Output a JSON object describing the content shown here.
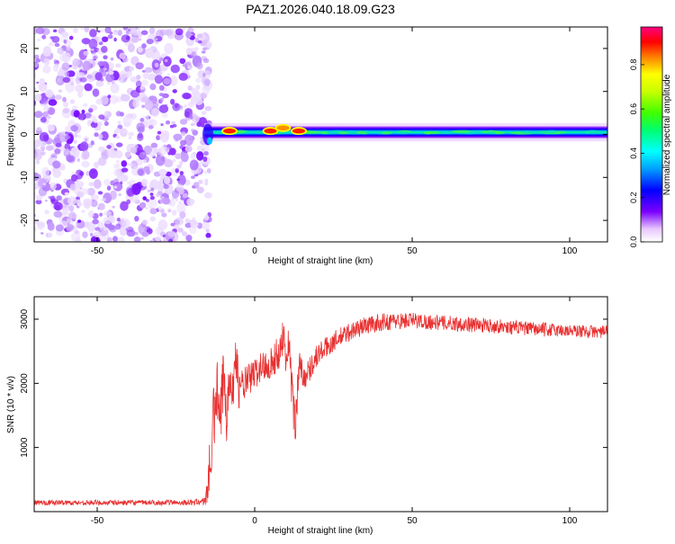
{
  "page_title": "PAZ1.2026.040.18.09.G23",
  "chart_data": [
    {
      "type": "heatmap",
      "title": "PAZ1.2026.040.18.09.G23",
      "xlabel": "Height of straight line (km)",
      "ylabel": "Frequency (Hz)",
      "xlim": [
        -70,
        112
      ],
      "ylim": [
        -25,
        25
      ],
      "xticks": [
        -50,
        0,
        50,
        100
      ],
      "xtick_labels": [
        "-50",
        "0",
        "50",
        "100"
      ],
      "yticks": [
        -20,
        -10,
        0,
        10,
        20
      ],
      "ytick_labels": [
        "-20",
        "-10",
        "0",
        "10",
        "20"
      ],
      "noise_region_x": [
        -70,
        -16
      ],
      "signal_band": {
        "x_start": -16,
        "x_end": 112,
        "center_hz": 0.5,
        "half_width_hz": 1.5
      },
      "hot_spots": [
        {
          "x": -8,
          "freq_hz": 0.8,
          "amplitude": 0.95
        },
        {
          "x": 5,
          "freq_hz": 0.8,
          "amplitude": 0.95
        },
        {
          "x": 9,
          "freq_hz": 1.5,
          "amplitude": 0.7
        },
        {
          "x": 14,
          "freq_hz": 0.8,
          "amplitude": 0.95
        }
      ],
      "colorbar": {
        "label": "Normalized spectral amplitude",
        "range": [
          0,
          0.97
        ],
        "ticks": [
          0,
          0.2,
          0.4,
          0.6,
          0.8
        ],
        "tick_labels": [
          "0.0",
          "0.2",
          "0.4",
          "0.6",
          "0.8"
        ]
      }
    },
    {
      "type": "line",
      "xlabel": "Height of straight line (km)",
      "ylabel": "SNR (10 * v/v)",
      "xlim": [
        -70,
        112
      ],
      "ylim": [
        0,
        3350
      ],
      "xticks": [
        -50,
        0,
        50,
        100
      ],
      "xtick_labels": [
        "-50",
        "0",
        "50",
        "100"
      ],
      "yticks": [
        1000,
        2000,
        3000
      ],
      "ytick_labels": [
        "1000",
        "2000",
        "3000"
      ],
      "series_color": "#e83030",
      "series": [
        {
          "name": "SNR",
          "x": [
            -70,
            -60,
            -50,
            -40,
            -30,
            -20,
            -16,
            -15,
            -14,
            -13,
            -12,
            -11,
            -10,
            -9,
            -8,
            -7,
            -6,
            -5,
            -4,
            -2,
            0,
            2,
            4,
            6,
            8,
            9,
            10,
            11,
            12,
            13,
            14,
            16,
            20,
            25,
            30,
            35,
            40,
            45,
            50,
            55,
            60,
            65,
            70,
            75,
            80,
            85,
            90,
            95,
            100,
            105,
            112
          ],
          "y": [
            140,
            140,
            140,
            140,
            140,
            145,
            160,
            350,
            800,
            1400,
            1950,
            1200,
            2100,
            1500,
            2350,
            1800,
            2500,
            1900,
            1950,
            2050,
            2150,
            2250,
            2300,
            2350,
            2500,
            2800,
            2350,
            2700,
            1700,
            1300,
            2300,
            2100,
            2450,
            2650,
            2800,
            2900,
            2950,
            2970,
            2980,
            2960,
            2940,
            2930,
            2910,
            2900,
            2880,
            2860,
            2840,
            2830,
            2820,
            2810,
            2800
          ],
          "noise_amplitude": [
            40,
            40,
            40,
            40,
            40,
            45,
            60,
            300,
            500,
            600,
            500,
            600,
            500,
            500,
            450,
            400,
            350,
            300,
            300,
            250,
            250,
            250,
            250,
            250,
            300,
            300,
            250,
            300,
            400,
            400,
            250,
            200,
            180,
            160,
            150,
            140,
            140,
            130,
            130,
            120,
            120,
            120,
            120,
            110,
            110,
            110,
            110,
            110,
            100,
            100,
            100
          ]
        }
      ]
    }
  ]
}
